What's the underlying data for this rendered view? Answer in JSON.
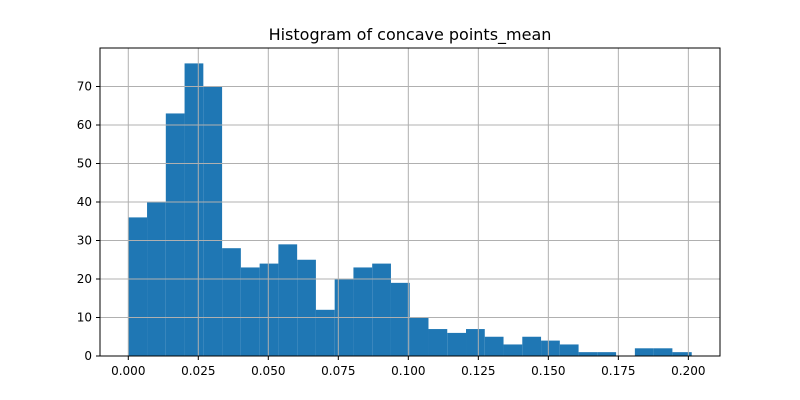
{
  "chart_data": {
    "type": "bar",
    "subtype": "histogram",
    "title": "Histogram of concave points_mean",
    "xlabel": "",
    "ylabel": "",
    "xlim": [
      -0.0101,
      0.2113
    ],
    "ylim": [
      0,
      80
    ],
    "grid": true,
    "bar_color": "#1f77b4",
    "bin_edges": [
      0.0,
      0.0067,
      0.0134,
      0.0201,
      0.0268,
      0.0335,
      0.0402,
      0.0469,
      0.0536,
      0.0603,
      0.067,
      0.0737,
      0.0804,
      0.0871,
      0.0938,
      0.1005,
      0.1072,
      0.1139,
      0.1206,
      0.1273,
      0.134,
      0.1407,
      0.1474,
      0.1541,
      0.1608,
      0.1675,
      0.1742,
      0.1809,
      0.1876,
      0.1943,
      0.2012
    ],
    "counts": [
      36,
      40,
      63,
      76,
      70,
      28,
      23,
      24,
      29,
      25,
      12,
      20,
      23,
      24,
      19,
      10,
      7,
      6,
      7,
      5,
      3,
      5,
      4,
      3,
      1,
      1,
      0,
      2,
      2,
      1
    ],
    "xticks": [
      0.0,
      0.025,
      0.05,
      0.075,
      0.1,
      0.125,
      0.15,
      0.175,
      0.2
    ],
    "xtick_labels": [
      "0.000",
      "0.025",
      "0.050",
      "0.075",
      "0.100",
      "0.125",
      "0.150",
      "0.175",
      "0.200"
    ],
    "yticks": [
      0,
      10,
      20,
      30,
      40,
      50,
      60,
      70
    ],
    "ytick_labels": [
      "0",
      "10",
      "20",
      "30",
      "40",
      "50",
      "60",
      "70"
    ]
  }
}
